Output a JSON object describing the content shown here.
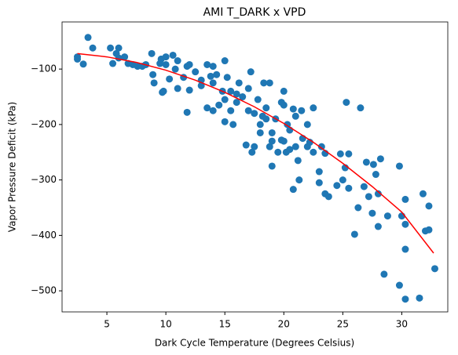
{
  "chart_data": {
    "type": "scatter",
    "title": "AMI T_DARK x VPD",
    "xlabel": "Dark Cycle Temperature (Degrees Celsius)",
    "ylabel": "Vapor Pressure Deficit (kPa)",
    "color": "#1f77b4",
    "x": [
      2.5,
      2.5,
      3,
      3.4,
      3.8,
      5.3,
      5.5,
      5.8,
      6,
      6,
      6.5,
      6.8,
      7.2,
      7.6,
      8,
      8.3,
      8.8,
      8.9,
      9,
      9.5,
      9.6,
      9.7,
      9.8,
      10,
      10,
      10.3,
      10.6,
      10.8,
      11,
      11,
      11.5,
      11.8,
      11.8,
      12,
      12,
      12.5,
      13,
      13,
      13.5,
      13.5,
      13.8,
      14,
      14,
      14,
      14.3,
      14.5,
      14.8,
      15,
      15,
      15,
      15.2,
      15.5,
      15.5,
      15.7,
      16,
      16,
      16.2,
      16.5,
      16.8,
      17,
      17,
      17.2,
      17.3,
      17.5,
      17.5,
      17.8,
      18,
      18,
      18.2,
      18.3,
      18.5,
      18.5,
      18.8,
      18.8,
      19,
      19,
      19,
      19.3,
      19.5,
      19.8,
      19.8,
      20,
      20,
      20,
      20.2,
      20.3,
      20.5,
      20.5,
      20.8,
      20.8,
      21,
      21,
      21.2,
      21.3,
      21.5,
      21.6,
      22,
      22,
      22.2,
      22.5,
      22.5,
      23,
      23,
      23.2,
      23.5,
      23.5,
      23.8,
      24.5,
      24.8,
      25,
      25.2,
      25.3,
      25.5,
      25.5,
      26,
      26.3,
      26.5,
      26.8,
      27,
      27.2,
      27.5,
      27.6,
      27.8,
      28,
      28,
      28.2,
      28.5,
      28.8,
      29.8,
      29.8,
      30,
      30.3,
      30.3,
      30.3,
      30.3,
      31.5,
      31.8,
      32,
      32.3,
      32.3,
      32.8
    ],
    "values": [
      -78,
      -82,
      -91,
      -43,
      -62,
      -62,
      -90,
      -72,
      -62,
      -80,
      -78,
      -90,
      -92,
      -95,
      -95,
      -92,
      -72,
      -110,
      -125,
      -90,
      -82,
      -142,
      -140,
      -78,
      -92,
      -118,
      -75,
      -100,
      -85,
      -135,
      -115,
      -178,
      -95,
      -92,
      -138,
      -105,
      -120,
      -130,
      -92,
      -170,
      -113,
      -95,
      -175,
      -125,
      -110,
      -165,
      -140,
      -85,
      -155,
      -195,
      -115,
      -140,
      -175,
      -200,
      -145,
      -160,
      -125,
      -150,
      -237,
      -135,
      -175,
      -105,
      -250,
      -180,
      -240,
      -155,
      -200,
      -215,
      -185,
      -125,
      -170,
      -190,
      -240,
      -125,
      -275,
      -215,
      -230,
      -190,
      -250,
      -160,
      -228,
      -165,
      -140,
      -230,
      -250,
      -200,
      -245,
      -210,
      -172,
      -317,
      -185,
      -240,
      -265,
      -300,
      -175,
      -225,
      -200,
      -240,
      -232,
      -170,
      -250,
      -285,
      -305,
      -240,
      -325,
      -252,
      -330,
      -310,
      -253,
      -300,
      -278,
      -160,
      -253,
      -315,
      -398,
      -350,
      -170,
      -312,
      -268,
      -330,
      -360,
      -272,
      -290,
      -325,
      -384,
      -262,
      -470,
      -365,
      -490,
      -275,
      -365,
      -515,
      -425,
      -380,
      -335,
      -513,
      -325,
      -392,
      -347,
      -390,
      -460
    ],
    "fit": {
      "color": "#ff0000",
      "x": [
        2.5,
        5,
        7.5,
        10,
        12.5,
        15,
        17.5,
        20,
        22.5,
        25,
        27.5,
        30,
        32.7
      ],
      "values": [
        -72,
        -78,
        -88,
        -102,
        -120,
        -142,
        -168,
        -198,
        -232,
        -270,
        -312,
        -358,
        -432
      ]
    },
    "xlim": [
      1.2,
      33.9
    ],
    "ylim": [
      -538,
      -15
    ],
    "xticks": [
      5,
      10,
      15,
      20,
      25,
      30
    ],
    "yticks": [
      {
        "value": -500,
        "label": "−500"
      },
      {
        "value": -400,
        "label": "−400"
      },
      {
        "value": -300,
        "label": "−300"
      },
      {
        "value": -200,
        "label": "−200"
      },
      {
        "value": -100,
        "label": "−100"
      }
    ],
    "grid": false
  }
}
